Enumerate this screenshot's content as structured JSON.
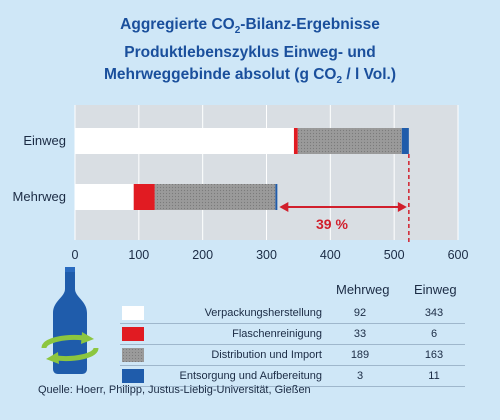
{
  "title": {
    "line1_pre": "Aggregierte CO",
    "line1_sub": "2",
    "line1_post": "-Bilanz-Ergebnisse",
    "line2": "Produktlebenszyklus Einweg- und",
    "line3_pre": "Mehrweggebinde absolut (g CO",
    "line3_sub": "2",
    "line3_post": " / l Vol.)"
  },
  "annotation": "39 %",
  "source": "Quelle: Hoerr, Philipp, Justus-Liebig-Universität, Gießen",
  "table": {
    "col_mehrweg": "Mehrweg",
    "col_einweg": "Einweg"
  },
  "colors": {
    "Verpackungsherstellung": "#ffffff",
    "Flaschenreinigung": "#e11b22",
    "Distribution und Import": "#9a9a9a",
    "Entsorgung und Aufbereitung": "#1f5cab",
    "title": "#1a4f9c",
    "background": "#cfe7f7"
  },
  "icons": [
    "bottle-icon",
    "recycle-arrow-icon"
  ],
  "chart_data": {
    "type": "bar",
    "orientation": "horizontal",
    "stacked": true,
    "categories": [
      "Einweg",
      "Mehrweg"
    ],
    "series": [
      {
        "name": "Verpackungsherstellung",
        "values": [
          343,
          92
        ]
      },
      {
        "name": "Flaschenreinigung",
        "values": [
          6,
          33
        ]
      },
      {
        "name": "Distribution und Import",
        "values": [
          163,
          189
        ]
      },
      {
        "name": "Entsorgung und Aufbereitung",
        "values": [
          11,
          3
        ]
      }
    ],
    "xlim": [
      0,
      600
    ],
    "xticks": [
      "0",
      "100",
      "200",
      "300",
      "400",
      "500",
      "600"
    ],
    "grid": true,
    "legend_placement": "bottom"
  }
}
